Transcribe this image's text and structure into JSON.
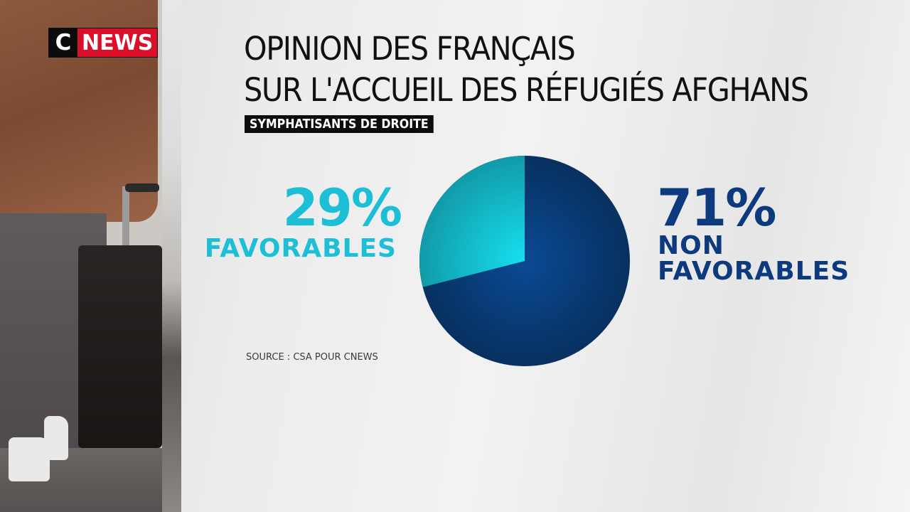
{
  "brand": {
    "logo_c": "C",
    "logo_news": "NEWS",
    "colors": {
      "black": "#0c0c0c",
      "red": "#d8102a"
    }
  },
  "title": {
    "line1": "OPINION DES FRANÇAIS",
    "line2": "SUR L'ACCUEIL DES RÉFUGIÉS AFGHANS"
  },
  "subtitle": "SYMPHATISANTS DE DROITE",
  "labels": {
    "favorable_pct": "29%",
    "favorable_label": "FAVORABLES",
    "nonfavorable_pct": "71%",
    "nonfavorable_label_line1": "NON",
    "nonfavorable_label_line2": "FAVORABLES"
  },
  "source": "SOURCE : CSA POUR CNEWS",
  "colors": {
    "favorable": "#1cbfd6",
    "nonfavorable": "#0d3a7e",
    "nonfavorable_center": "#0a4a94"
  },
  "chart_data": {
    "type": "pie",
    "title": "OPINION DES FRANÇAIS SUR L'ACCUEIL DES RÉFUGIÉS AFGHANS",
    "subtitle": "SYMPHATISANTS DE DROITE",
    "categories": [
      "FAVORABLES",
      "NON FAVORABLES"
    ],
    "values": [
      29,
      71
    ],
    "unit": "%",
    "colors": [
      "#1cbfd6",
      "#0d3a7e"
    ],
    "source": "SOURCE : CSA POUR CNEWS",
    "legend": "inline labels (left: favorables, right: non favorables)"
  }
}
